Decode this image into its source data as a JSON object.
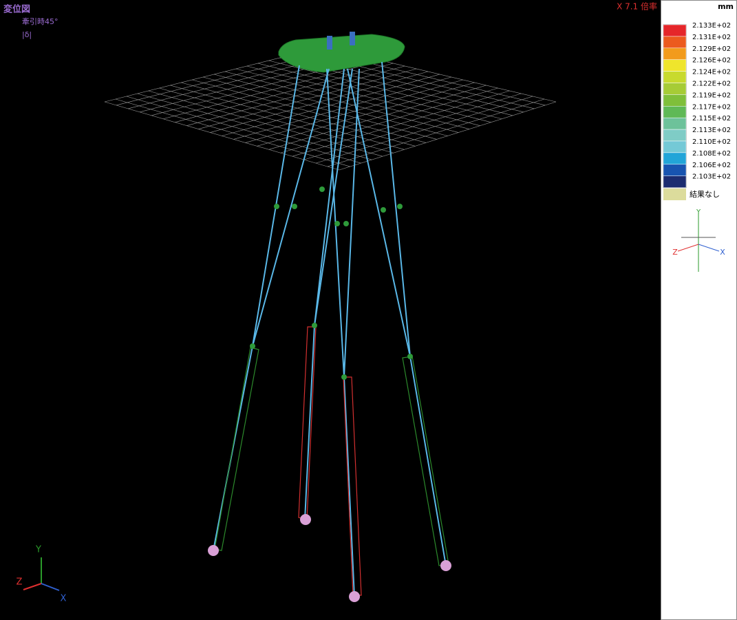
{
  "header": {
    "title": "変位図",
    "case": "牽引時45°",
    "component": "|δ|",
    "scale": "X 7.1 倍率"
  },
  "legend": {
    "unit": "mm",
    "items": [
      {
        "label": "2.133E+02",
        "color": "#e5262a"
      },
      {
        "label": "2.131E+02",
        "color": "#ec5a1e"
      },
      {
        "label": "2.129E+02",
        "color": "#f29b1c"
      },
      {
        "label": "2.126E+02",
        "color": "#efe52c"
      },
      {
        "label": "2.124E+02",
        "color": "#c8da2e"
      },
      {
        "label": "2.122E+02",
        "color": "#a6cc36"
      },
      {
        "label": "2.119E+02",
        "color": "#7fbf3a"
      },
      {
        "label": "2.117E+02",
        "color": "#5fb956"
      },
      {
        "label": "2.115E+02",
        "color": "#6dc29a"
      },
      {
        "label": "2.113E+02",
        "color": "#7fccc6"
      },
      {
        "label": "2.110E+02",
        "color": "#74c9d6"
      },
      {
        "label": "2.108E+02",
        "color": "#22a5d8"
      },
      {
        "label": "2.106E+02",
        "color": "#1854b0"
      },
      {
        "label": "2.103E+02",
        "color": "#1c2c70"
      }
    ],
    "no_result": {
      "label": "結果なし",
      "color": "#dcdc9c"
    }
  },
  "axes_panel": {
    "y": "Y",
    "z": "Z",
    "x": "X"
  },
  "axes_view": {
    "y": "Y",
    "z": "Z",
    "x": "X"
  }
}
